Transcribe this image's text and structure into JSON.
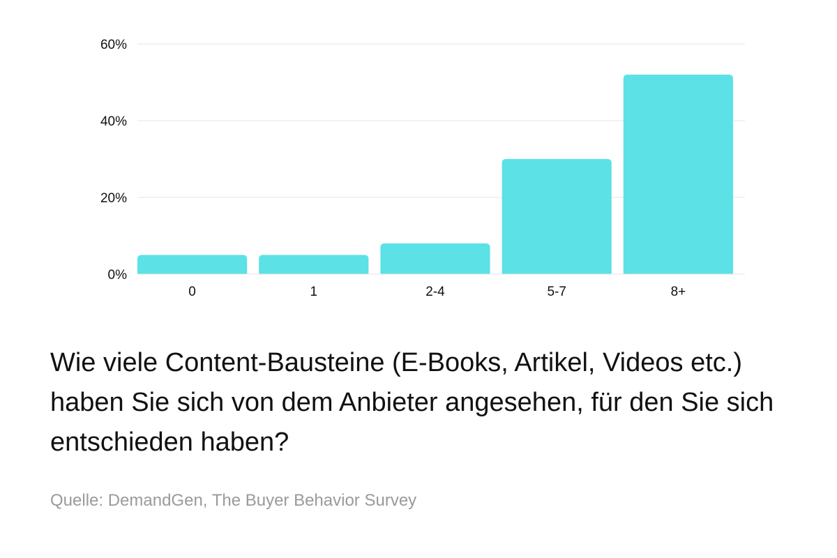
{
  "chart_data": {
    "type": "bar",
    "categories": [
      "0",
      "1",
      "2-4",
      "5-7",
      "8+"
    ],
    "values": [
      5,
      5,
      8,
      30,
      52
    ],
    "ylim": [
      0,
      60
    ],
    "yticks": [
      0,
      20,
      40,
      60
    ],
    "ytick_labels": [
      "0%",
      "20%",
      "40%",
      "60%"
    ],
    "grid": true,
    "bar_color": "#5ce1e6",
    "grid_color": "#e6e6e6"
  },
  "caption": "Wie viele Content-Bausteine (E-Books, Artikel, Videos etc.) haben Sie sich von dem Anbieter angesehen, für den Sie sich entschieden haben?",
  "source": "Quelle: DemandGen, The Buyer Behavior Survey"
}
